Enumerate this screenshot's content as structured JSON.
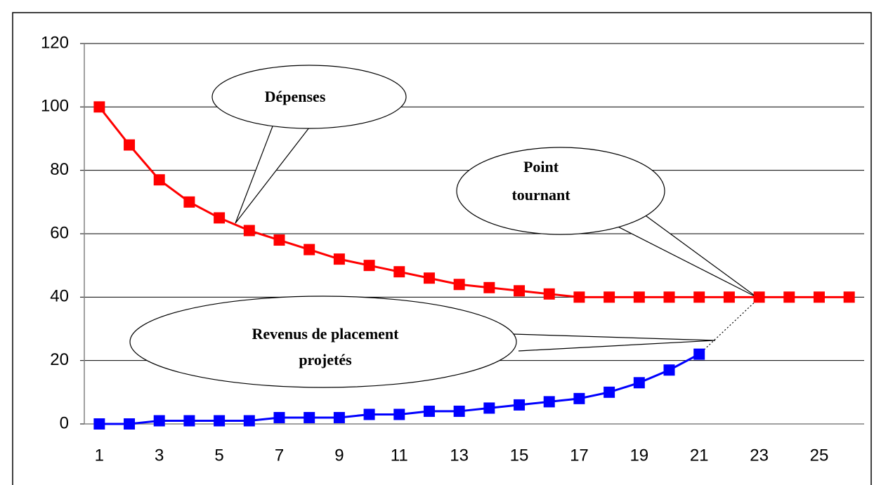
{
  "chart_data": {
    "type": "line",
    "categories": [
      1,
      null,
      3,
      null,
      5,
      null,
      7,
      null,
      9,
      null,
      11,
      null,
      13,
      null,
      15,
      null,
      17,
      null,
      19,
      null,
      21,
      null,
      23,
      null,
      25,
      null
    ],
    "series": [
      {
        "color": "#ff0000",
        "values": [
          100,
          88,
          77,
          70,
          65,
          61,
          58,
          55,
          52,
          50,
          48,
          46,
          44,
          43,
          42,
          41,
          40,
          40,
          40,
          40,
          40,
          40,
          40,
          40,
          40,
          40
        ]
      },
      {
        "color": "#0000ff",
        "values": [
          0,
          0,
          1,
          1,
          1,
          1,
          2,
          2,
          2,
          3,
          3,
          4,
          4,
          5,
          6,
          7,
          8,
          10,
          13,
          17,
          22,
          null,
          null,
          null,
          null,
          null
        ]
      }
    ],
    "ylim": [
      0,
      120
    ],
    "yticks": [
      0,
      20,
      40,
      60,
      80,
      100,
      120
    ],
    "grid": true,
    "annotations": [
      {
        "lines": [
          "Dépenses"
        ]
      },
      {
        "lines": [
          "Point",
          "tournant"
        ]
      },
      {
        "lines": [
          "Revenus de placement",
          "projetés"
        ]
      }
    ]
  }
}
